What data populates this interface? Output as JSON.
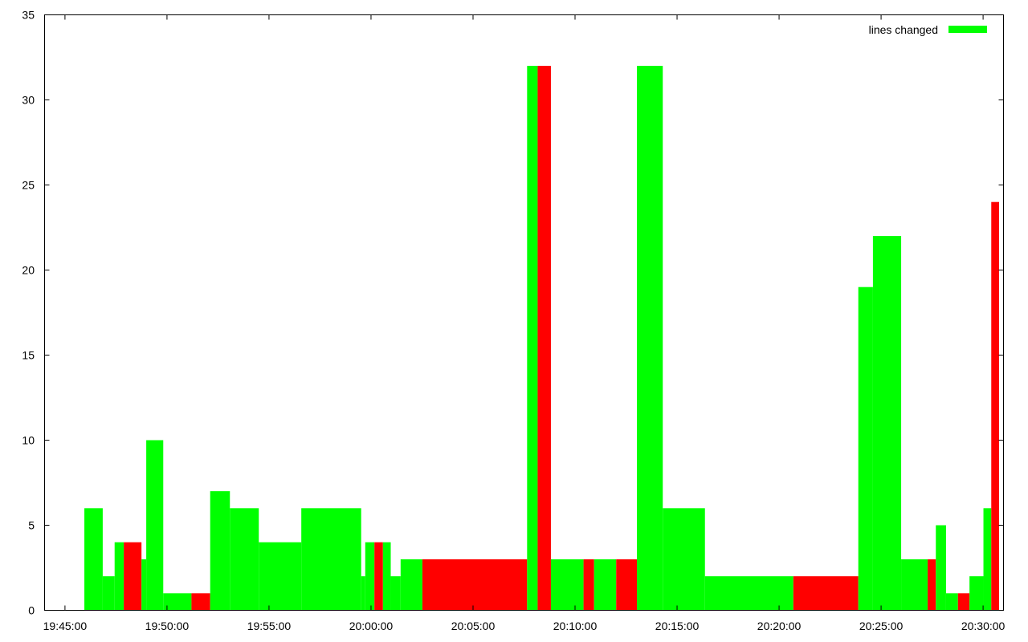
{
  "chart_data": {
    "type": "bar",
    "title": "",
    "xlabel": "",
    "ylabel": "",
    "x_axis": {
      "min": "19:44:00",
      "max": "20:31:00",
      "tick_labels": [
        "19:45:00",
        "19:50:00",
        "19:55:00",
        "20:00:00",
        "20:05:00",
        "20:10:00",
        "20:15:00",
        "20:20:00",
        "20:25:00",
        "20:30:00"
      ]
    },
    "ylim": [
      0,
      35
    ],
    "y_tick_labels": [
      "0",
      "5",
      "10",
      "15",
      "20",
      "25",
      "30",
      "35"
    ],
    "grid": false,
    "legend": {
      "placement": "top-right",
      "label": "lines changed",
      "color": "#00ff00"
    },
    "colors": {
      "green": "#00ff00",
      "red": "#ff0000"
    },
    "bars": [
      {
        "start": "19:45:57",
        "end": "19:46:51",
        "value": 6,
        "color": "green"
      },
      {
        "start": "19:46:51",
        "end": "19:47:26",
        "value": 2,
        "color": "green"
      },
      {
        "start": "19:47:26",
        "end": "19:47:53",
        "value": 4,
        "color": "green"
      },
      {
        "start": "19:47:53",
        "end": "19:48:45",
        "value": 4,
        "color": "red"
      },
      {
        "start": "19:48:45",
        "end": "19:48:59",
        "value": 3,
        "color": "green"
      },
      {
        "start": "19:48:59",
        "end": "19:49:49",
        "value": 10,
        "color": "green"
      },
      {
        "start": "19:49:49",
        "end": "19:51:12",
        "value": 1,
        "color": "green"
      },
      {
        "start": "19:51:12",
        "end": "19:52:07",
        "value": 1,
        "color": "red"
      },
      {
        "start": "19:52:07",
        "end": "19:53:05",
        "value": 7,
        "color": "green"
      },
      {
        "start": "19:53:05",
        "end": "19:54:30",
        "value": 6,
        "color": "green"
      },
      {
        "start": "19:54:30",
        "end": "19:56:35",
        "value": 4,
        "color": "green"
      },
      {
        "start": "19:56:35",
        "end": "19:59:31",
        "value": 6,
        "color": "green"
      },
      {
        "start": "19:59:31",
        "end": "19:59:43",
        "value": 2,
        "color": "green"
      },
      {
        "start": "19:59:43",
        "end": "20:00:10",
        "value": 4,
        "color": "green"
      },
      {
        "start": "20:00:10",
        "end": "20:00:35",
        "value": 4,
        "color": "red"
      },
      {
        "start": "20:00:35",
        "end": "20:00:58",
        "value": 4,
        "color": "green"
      },
      {
        "start": "20:00:58",
        "end": "20:01:27",
        "value": 2,
        "color": "green"
      },
      {
        "start": "20:01:27",
        "end": "20:02:31",
        "value": 3,
        "color": "green"
      },
      {
        "start": "20:02:31",
        "end": "20:07:39",
        "value": 3,
        "color": "red"
      },
      {
        "start": "20:07:39",
        "end": "20:08:10",
        "value": 32,
        "color": "green"
      },
      {
        "start": "20:08:10",
        "end": "20:08:49",
        "value": 32,
        "color": "red"
      },
      {
        "start": "20:08:49",
        "end": "20:10:25",
        "value": 3,
        "color": "green"
      },
      {
        "start": "20:10:25",
        "end": "20:10:56",
        "value": 3,
        "color": "red"
      },
      {
        "start": "20:10:56",
        "end": "20:12:01",
        "value": 3,
        "color": "green"
      },
      {
        "start": "20:12:01",
        "end": "20:13:02",
        "value": 3,
        "color": "red"
      },
      {
        "start": "20:13:02",
        "end": "20:14:18",
        "value": 32,
        "color": "green"
      },
      {
        "start": "20:14:18",
        "end": "20:16:22",
        "value": 6,
        "color": "green"
      },
      {
        "start": "20:16:22",
        "end": "20:20:42",
        "value": 2,
        "color": "green"
      },
      {
        "start": "20:20:42",
        "end": "20:23:53",
        "value": 2,
        "color": "red"
      },
      {
        "start": "20:23:53",
        "end": "20:24:36",
        "value": 19,
        "color": "green"
      },
      {
        "start": "20:24:36",
        "end": "20:25:59",
        "value": 22,
        "color": "green"
      },
      {
        "start": "20:25:59",
        "end": "20:27:17",
        "value": 3,
        "color": "green"
      },
      {
        "start": "20:27:17",
        "end": "20:27:41",
        "value": 3,
        "color": "red"
      },
      {
        "start": "20:27:41",
        "end": "20:28:11",
        "value": 5,
        "color": "green"
      },
      {
        "start": "20:28:11",
        "end": "20:28:46",
        "value": 1,
        "color": "green"
      },
      {
        "start": "20:28:46",
        "end": "20:29:20",
        "value": 1,
        "color": "red"
      },
      {
        "start": "20:29:20",
        "end": "20:30:01",
        "value": 2,
        "color": "green"
      },
      {
        "start": "20:30:01",
        "end": "20:30:24",
        "value": 6,
        "color": "green"
      },
      {
        "start": "20:30:24",
        "end": "20:30:47",
        "value": 24,
        "color": "red"
      }
    ]
  }
}
